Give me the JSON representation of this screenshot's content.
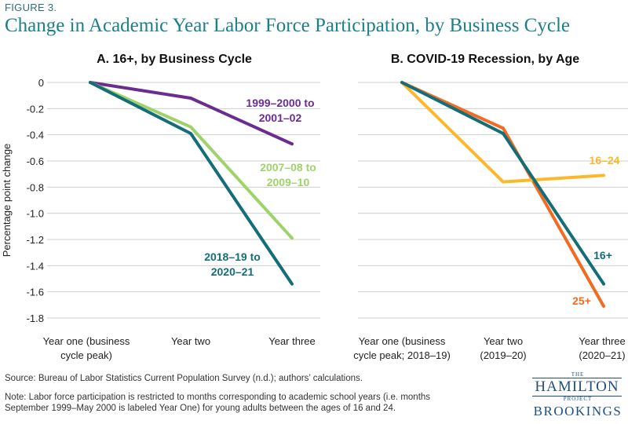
{
  "figure_label": "FIGURE 3.",
  "title": "Change in Academic Year Labor Force Participation, by Business Cycle",
  "source": "Source: Bureau of Labor Statistics Current Population Survey (n.d.); authors’ calculations.",
  "note_line1": "Note: Labor force participation is restricted to months corresponding to academic school years (i.e. months",
  "note_line2": "September 1999–May 2000 is labeled Year One) for young adults between the ages of 16 and 24.",
  "logo": {
    "the": "THE",
    "hamilton": "HAMILTON",
    "project": "PROJECT",
    "brookings": "BROOKINGS"
  },
  "chart_data": [
    {
      "type": "line",
      "title": "A. 16+, by Business Cycle",
      "ylabel": "Percentage point change",
      "categories": [
        [
          "Year one (business",
          "cycle peak)"
        ],
        [
          "Year two"
        ],
        [
          "Year three"
        ]
      ],
      "ylim": [
        -1.8,
        0
      ],
      "yticks": [
        0,
        -0.2,
        -0.4,
        -0.6,
        -0.8,
        -1.0,
        -1.2,
        -1.4,
        -1.6,
        -1.8
      ],
      "ytick_labels": [
        "0",
        "-0.2",
        "-0.4",
        "-0.6",
        "-0.8",
        "-1.0",
        "-1.2",
        "-1.4",
        "-1.6",
        "-1.8"
      ],
      "series": [
        {
          "name": "1999–2000 to 2001–02",
          "label_lines": [
            "1999–2000 to",
            "2001–02"
          ],
          "color": "#6a2c91",
          "values": [
            0,
            -0.12,
            -0.47
          ]
        },
        {
          "name": "2007–08 to 2009–10",
          "label_lines": [
            "2007–08 to",
            "2009–10"
          ],
          "color": "#9ed36a",
          "values": [
            0,
            -0.34,
            -1.19
          ]
        },
        {
          "name": "2018–19 to 2020–21",
          "label_lines": [
            "2018–19 to",
            "2020–21"
          ],
          "color": "#146e7a",
          "values": [
            0,
            -0.39,
            -1.54
          ]
        }
      ]
    },
    {
      "type": "line",
      "title": "B. COVID-19 Recession, by Age",
      "categories": [
        [
          "Year one (business",
          "cycle peak; 2018–19)"
        ],
        [
          "Year two",
          "(2019–20)"
        ],
        [
          "Year three",
          "(2020–21)"
        ]
      ],
      "ylim": [
        -1.8,
        0
      ],
      "series": [
        {
          "name": "25+",
          "label_lines": [
            "25+"
          ],
          "color": "#f26b21",
          "values": [
            0,
            -0.35,
            -1.71
          ]
        },
        {
          "name": "16–24",
          "label_lines": [
            "16–24"
          ],
          "color": "#fbb829",
          "values": [
            0,
            -0.76,
            -0.71
          ]
        },
        {
          "name": "16+",
          "label_lines": [
            "16+"
          ],
          "color": "#146e7a",
          "values": [
            0,
            -0.39,
            -1.54
          ]
        }
      ]
    }
  ]
}
